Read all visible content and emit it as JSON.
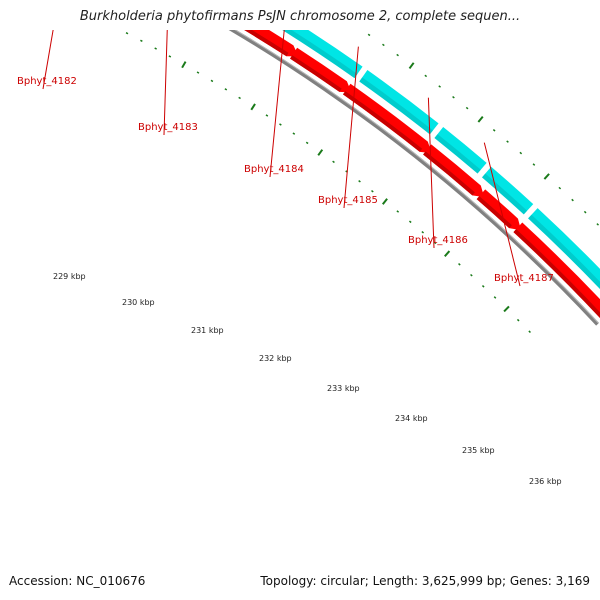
{
  "title": "Burkholderia phytofirmans PsJN chromosome 2, complete sequen...",
  "footer": {
    "accession": "Accession: NC_010676",
    "summary": "Topology: circular; Length: 3,625,999 bp; Genes: 3,169"
  },
  "colors": {
    "forward_cds": "#00e5e5",
    "forward_cds_dark": "#00b8b8",
    "forward_highlight": "#4a7fb0",
    "reverse_cds": "#ff0000",
    "reverse_cds_dark": "#c80000",
    "backbone": "#808080",
    "ticks": "#1a7a1a",
    "gene_label": "#cc0000"
  },
  "gene_labels": [
    "Bphyt_4182",
    "Bphyt_4183",
    "Bphyt_4184",
    "Bphyt_4185",
    "Bphyt_4186",
    "Bphyt_4187"
  ],
  "kbp_labels": [
    "229 kbp",
    "230 kbp",
    "231 kbp",
    "232 kbp",
    "233 kbp",
    "234 kbp",
    "235 kbp",
    "236 kbp"
  ]
}
